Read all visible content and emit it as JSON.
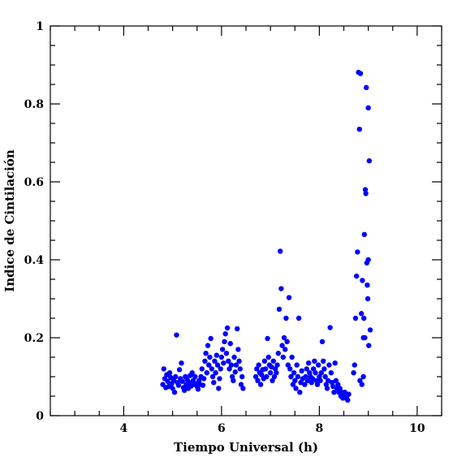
{
  "chart_data": {
    "type": "scatter",
    "title": "",
    "xlabel": "Tiempo Universal (h)",
    "ylabel": "Indice de Cintilación",
    "xlim": [
      2.5,
      10.5
    ],
    "ylim": [
      0,
      1
    ],
    "x_ticks": [
      4,
      6,
      8,
      10
    ],
    "x_tick_labels": [
      "4",
      "6",
      "8",
      "10"
    ],
    "y_ticks": [
      0,
      0.2,
      0.4,
      0.6,
      0.8,
      1
    ],
    "y_tick_labels": [
      "0",
      "0.2",
      "0.4",
      "0.6",
      "0.8",
      "1"
    ],
    "x_minor_step": 0.5,
    "y_minor_step": 0.05,
    "grid": false,
    "point_color": "#0000ff",
    "series": [
      {
        "points": [
          [
            4.8,
            0.08
          ],
          [
            4.82,
            0.12
          ],
          [
            4.84,
            0.095
          ],
          [
            4.86,
            0.072
          ],
          [
            4.88,
            0.105
          ],
          [
            4.9,
            0.088
          ],
          [
            4.92,
            0.075
          ],
          [
            4.94,
            0.11
          ],
          [
            4.96,
            0.098
          ],
          [
            4.98,
            0.082
          ],
          [
            5.0,
            0.07
          ],
          [
            5.02,
            0.09
          ],
          [
            5.04,
            0.06
          ],
          [
            5.06,
            0.1
          ],
          [
            5.08,
            0.207
          ],
          [
            5.1,
            0.085
          ],
          [
            5.12,
            0.078
          ],
          [
            5.14,
            0.118
          ],
          [
            5.16,
            0.095
          ],
          [
            5.18,
            0.135
          ],
          [
            5.2,
            0.088
          ],
          [
            5.22,
            0.072
          ],
          [
            5.24,
            0.065
          ],
          [
            5.26,
            0.1
          ],
          [
            5.28,
            0.08
          ],
          [
            5.3,
            0.092
          ],
          [
            5.32,
            0.07
          ],
          [
            5.34,
            0.085
          ],
          [
            5.36,
            0.103
          ],
          [
            5.38,
            0.076
          ],
          [
            5.4,
            0.11
          ],
          [
            5.42,
            0.09
          ],
          [
            5.44,
            0.08
          ],
          [
            5.46,
            0.1
          ],
          [
            5.48,
            0.082
          ],
          [
            5.5,
            0.075
          ],
          [
            5.52,
            0.068
          ],
          [
            5.54,
            0.09
          ],
          [
            5.56,
            0.08
          ],
          [
            5.58,
            0.1
          ],
          [
            5.6,
            0.12
          ],
          [
            5.62,
            0.078
          ],
          [
            5.64,
            0.095
          ],
          [
            5.66,
            0.14
          ],
          [
            5.68,
            0.16
          ],
          [
            5.7,
            0.11
          ],
          [
            5.72,
            0.18
          ],
          [
            5.74,
            0.13
          ],
          [
            5.76,
            0.15
          ],
          [
            5.78,
            0.198
          ],
          [
            5.8,
            0.12
          ],
          [
            5.82,
            0.1
          ],
          [
            5.84,
            0.085
          ],
          [
            5.86,
            0.14
          ],
          [
            5.88,
            0.11
          ],
          [
            5.9,
            0.155
          ],
          [
            5.92,
            0.13
          ],
          [
            5.94,
            0.07
          ],
          [
            5.96,
            0.095
          ],
          [
            5.98,
            0.12
          ],
          [
            6.0,
            0.15
          ],
          [
            6.02,
            0.17
          ],
          [
            6.04,
            0.135
          ],
          [
            6.06,
            0.19
          ],
          [
            6.08,
            0.21
          ],
          [
            6.1,
            0.16
          ],
          [
            6.12,
            0.225
          ],
          [
            6.14,
            0.14
          ],
          [
            6.16,
            0.12
          ],
          [
            6.18,
            0.185
          ],
          [
            6.2,
            0.13
          ],
          [
            6.22,
            0.1
          ],
          [
            6.24,
            0.09
          ],
          [
            6.26,
            0.15
          ],
          [
            6.28,
            0.112
          ],
          [
            6.3,
            0.13
          ],
          [
            6.32,
            0.223
          ],
          [
            6.34,
            0.17
          ],
          [
            6.36,
            0.14
          ],
          [
            6.38,
            0.12
          ],
          [
            6.4,
            0.08
          ],
          [
            6.42,
            0.1
          ],
          [
            6.44,
            0.07
          ],
          [
            6.7,
            0.1
          ],
          [
            6.72,
            0.12
          ],
          [
            6.74,
            0.09
          ],
          [
            6.76,
            0.13
          ],
          [
            6.78,
            0.11
          ],
          [
            6.8,
            0.08
          ],
          [
            6.82,
            0.105
          ],
          [
            6.84,
            0.118
          ],
          [
            6.86,
            0.095
          ],
          [
            6.88,
            0.14
          ],
          [
            6.9,
            0.12
          ],
          [
            6.92,
            0.1
          ],
          [
            6.94,
            0.198
          ],
          [
            6.96,
            0.15
          ],
          [
            6.98,
            0.13
          ],
          [
            7.0,
            0.11
          ],
          [
            7.02,
            0.125
          ],
          [
            7.04,
            0.09
          ],
          [
            7.06,
            0.14
          ],
          [
            7.08,
            0.1
          ],
          [
            7.1,
            0.12
          ],
          [
            7.12,
            0.11
          ],
          [
            7.14,
            0.13
          ],
          [
            7.16,
            0.16
          ],
          [
            7.18,
            0.273
          ],
          [
            7.2,
            0.422
          ],
          [
            7.22,
            0.326
          ],
          [
            7.24,
            0.18
          ],
          [
            7.26,
            0.15
          ],
          [
            7.28,
            0.2
          ],
          [
            7.3,
            0.17
          ],
          [
            7.32,
            0.25
          ],
          [
            7.34,
            0.19
          ],
          [
            7.36,
            0.13
          ],
          [
            7.38,
            0.303
          ],
          [
            7.4,
            0.12
          ],
          [
            7.42,
            0.1
          ],
          [
            7.44,
            0.15
          ],
          [
            7.46,
            0.08
          ],
          [
            7.48,
            0.11
          ],
          [
            7.5,
            0.09
          ],
          [
            7.52,
            0.07
          ],
          [
            7.54,
            0.13
          ],
          [
            7.56,
            0.1
          ],
          [
            7.58,
            0.25
          ],
          [
            7.6,
            0.06
          ],
          [
            7.62,
            0.085
          ],
          [
            7.64,
            0.115
          ],
          [
            7.66,
            0.095
          ],
          [
            7.7,
            0.08
          ],
          [
            7.72,
            0.1
          ],
          [
            7.74,
            0.12
          ],
          [
            7.76,
            0.09
          ],
          [
            7.78,
            0.135
          ],
          [
            7.8,
            0.11
          ],
          [
            7.82,
            0.1
          ],
          [
            7.84,
            0.085
          ],
          [
            7.86,
            0.095
          ],
          [
            7.88,
            0.12
          ],
          [
            7.9,
            0.14
          ],
          [
            7.92,
            0.11
          ],
          [
            7.94,
            0.09
          ],
          [
            7.96,
            0.08
          ],
          [
            7.98,
            0.13
          ],
          [
            8.0,
            0.1
          ],
          [
            8.02,
            0.09
          ],
          [
            8.04,
            0.11
          ],
          [
            8.06,
            0.19
          ],
          [
            8.08,
            0.14
          ],
          [
            8.1,
            0.12
          ],
          [
            8.12,
            0.1
          ],
          [
            8.14,
            0.08
          ],
          [
            8.16,
            0.07
          ],
          [
            8.18,
            0.09
          ],
          [
            8.2,
            0.13
          ],
          [
            8.22,
            0.226
          ],
          [
            8.24,
            0.11
          ],
          [
            8.26,
            0.085
          ],
          [
            8.28,
            0.075
          ],
          [
            8.3,
            0.06
          ],
          [
            8.32,
            0.135
          ],
          [
            8.34,
            0.09
          ],
          [
            8.36,
            0.07
          ],
          [
            8.38,
            0.08
          ],
          [
            8.4,
            0.06
          ],
          [
            8.42,
            0.07
          ],
          [
            8.44,
            0.05
          ],
          [
            8.46,
            0.06
          ],
          [
            8.48,
            0.045
          ],
          [
            8.5,
            0.05
          ],
          [
            8.52,
            0.06
          ],
          [
            8.54,
            0.045
          ],
          [
            8.56,
            0.05
          ],
          [
            8.58,
            0.04
          ],
          [
            8.6,
            0.055
          ],
          [
            8.7,
            0.11
          ],
          [
            8.72,
            0.13
          ],
          [
            8.74,
            0.25
          ],
          [
            8.76,
            0.358
          ],
          [
            8.78,
            0.42
          ],
          [
            8.8,
            0.881
          ],
          [
            8.82,
            0.735
          ],
          [
            8.84,
            0.878
          ],
          [
            8.86,
            0.262
          ],
          [
            8.88,
            0.347
          ],
          [
            8.9,
            0.2
          ],
          [
            8.92,
            0.465
          ],
          [
            8.94,
            0.58
          ],
          [
            8.96,
            0.842
          ],
          [
            8.98,
            0.335
          ],
          [
            9.0,
            0.79
          ],
          [
            9.02,
            0.654
          ],
          [
            9.04,
            0.22
          ],
          [
            8.93,
            0.2
          ],
          [
            8.97,
            0.392
          ],
          [
            9.0,
            0.4
          ],
          [
            8.95,
            0.57
          ],
          [
            8.99,
            0.3
          ],
          [
            8.91,
            0.25
          ],
          [
            9.01,
            0.18
          ],
          [
            8.83,
            0.09
          ],
          [
            8.87,
            0.08
          ],
          [
            8.9,
            0.1
          ]
        ]
      }
    ]
  }
}
